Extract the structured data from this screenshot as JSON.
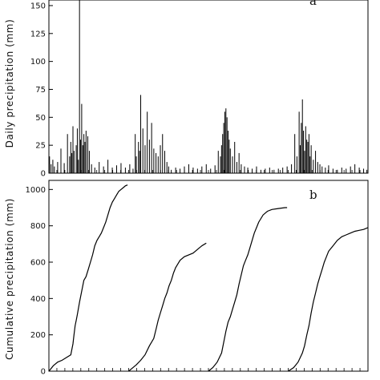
{
  "chart_data": [
    {
      "panel": "a",
      "type": "bar",
      "ylabel": "Daily precipitation (mm)",
      "ylim": [
        0,
        155
      ],
      "yticks": [
        "0",
        "25",
        "50",
        "75",
        "100",
        "125",
        "150"
      ],
      "xlim": [
        0,
        1460
      ],
      "grid": false,
      "x": [
        3,
        10,
        18,
        25,
        40,
        55,
        70,
        85,
        95,
        100,
        105,
        110,
        115,
        125,
        130,
        135,
        140,
        145,
        150,
        155,
        160,
        165,
        170,
        178,
        185,
        195,
        210,
        230,
        250,
        270,
        290,
        310,
        330,
        350,
        370,
        385,
        395,
        400,
        410,
        415,
        420,
        430,
        440,
        450,
        460,
        470,
        480,
        490,
        500,
        510,
        520,
        530,
        540,
        548,
        560,
        580,
        600,
        620,
        640,
        660,
        680,
        700,
        720,
        740,
        760,
        775,
        785,
        790,
        795,
        800,
        805,
        810,
        815,
        820,
        825,
        830,
        840,
        850,
        860,
        870,
        880,
        895,
        910,
        930,
        950,
        970,
        990,
        1010,
        1030,
        1050,
        1070,
        1090,
        1110,
        1125,
        1135,
        1145,
        1150,
        1155,
        1160,
        1165,
        1170,
        1175,
        1180,
        1185,
        1190,
        1195,
        1200,
        1210,
        1220,
        1230,
        1240,
        1250,
        1265,
        1280,
        1300,
        1320,
        1340,
        1360,
        1380,
        1400,
        1420,
        1440,
        1455
      ],
      "values": [
        15,
        8,
        12,
        6,
        10,
        22,
        9,
        35,
        15,
        28,
        18,
        42,
        20,
        25,
        40,
        12,
        155,
        30,
        62,
        25,
        35,
        28,
        38,
        33,
        20,
        8,
        5,
        10,
        6,
        12,
        5,
        7,
        9,
        5,
        8,
        4,
        35,
        15,
        28,
        20,
        70,
        40,
        25,
        55,
        30,
        45,
        22,
        18,
        15,
        25,
        35,
        20,
        10,
        6,
        3,
        5,
        4,
        6,
        8,
        5,
        4,
        6,
        8,
        4,
        7,
        20,
        15,
        25,
        35,
        45,
        55,
        58,
        50,
        38,
        30,
        22,
        15,
        28,
        10,
        18,
        8,
        6,
        5,
        4,
        6,
        3,
        4,
        5,
        3,
        4,
        5,
        6,
        8,
        35,
        15,
        55,
        25,
        45,
        66,
        38,
        20,
        42,
        30,
        28,
        35,
        15,
        25,
        12,
        20,
        10,
        8,
        6,
        5,
        7,
        4,
        3,
        5,
        4,
        6,
        8,
        5,
        4,
        3
      ]
    },
    {
      "panel": "b",
      "type": "line",
      "ylabel": "Cumulative precipitation (mm)",
      "ylim": [
        0,
        1050
      ],
      "yticks": [
        "0",
        "200",
        "400",
        "600",
        "800",
        "1000"
      ],
      "xlim": [
        0,
        1460
      ],
      "grid": false,
      "series": [
        {
          "x": [
            0,
            20,
            40,
            60,
            80,
            100,
            110,
            115,
            120,
            125,
            130,
            140,
            150,
            160,
            170,
            180,
            190,
            200,
            210,
            220,
            230,
            240,
            250,
            260,
            270,
            280,
            290,
            300,
            310,
            320,
            330,
            340,
            350,
            360
          ],
          "y": [
            0,
            30,
            50,
            60,
            75,
            90,
            150,
            200,
            250,
            280,
            310,
            380,
            440,
            500,
            520,
            560,
            600,
            640,
            690,
            720,
            740,
            760,
            790,
            820,
            860,
            900,
            930,
            950,
            970,
            990,
            1000,
            1010,
            1020,
            1025
          ]
        },
        {
          "x": [
            365,
            380,
            400,
            420,
            440,
            460,
            480,
            490,
            500,
            510,
            520,
            530,
            540,
            550,
            560,
            570,
            580,
            590,
            600,
            620,
            640,
            660,
            680,
            700,
            720
          ],
          "y": [
            0,
            15,
            35,
            60,
            90,
            140,
            180,
            230,
            280,
            320,
            360,
            400,
            430,
            470,
            500,
            540,
            570,
            590,
            610,
            630,
            640,
            650,
            670,
            690,
            705
          ]
        },
        {
          "x": [
            730,
            750,
            770,
            790,
            800,
            810,
            820,
            830,
            840,
            850,
            860,
            870,
            880,
            890,
            900,
            910,
            920,
            930,
            940,
            950,
            960,
            980,
            1000,
            1020,
            1050,
            1080,
            1090
          ],
          "y": [
            0,
            20,
            50,
            100,
            160,
            220,
            270,
            300,
            340,
            380,
            420,
            480,
            530,
            580,
            610,
            640,
            680,
            720,
            760,
            790,
            820,
            860,
            880,
            890,
            895,
            900,
            900
          ]
        },
        {
          "x": [
            1095,
            1120,
            1140,
            1160,
            1170,
            1180,
            1190,
            1200,
            1210,
            1220,
            1230,
            1240,
            1250,
            1260,
            1270,
            1280,
            1300,
            1320,
            1340,
            1360,
            1380,
            1400,
            1420,
            1440,
            1460
          ],
          "y": [
            0,
            20,
            50,
            100,
            140,
            200,
            250,
            320,
            380,
            430,
            480,
            520,
            560,
            600,
            630,
            660,
            690,
            720,
            740,
            750,
            760,
            770,
            775,
            780,
            790
          ]
        }
      ]
    }
  ]
}
